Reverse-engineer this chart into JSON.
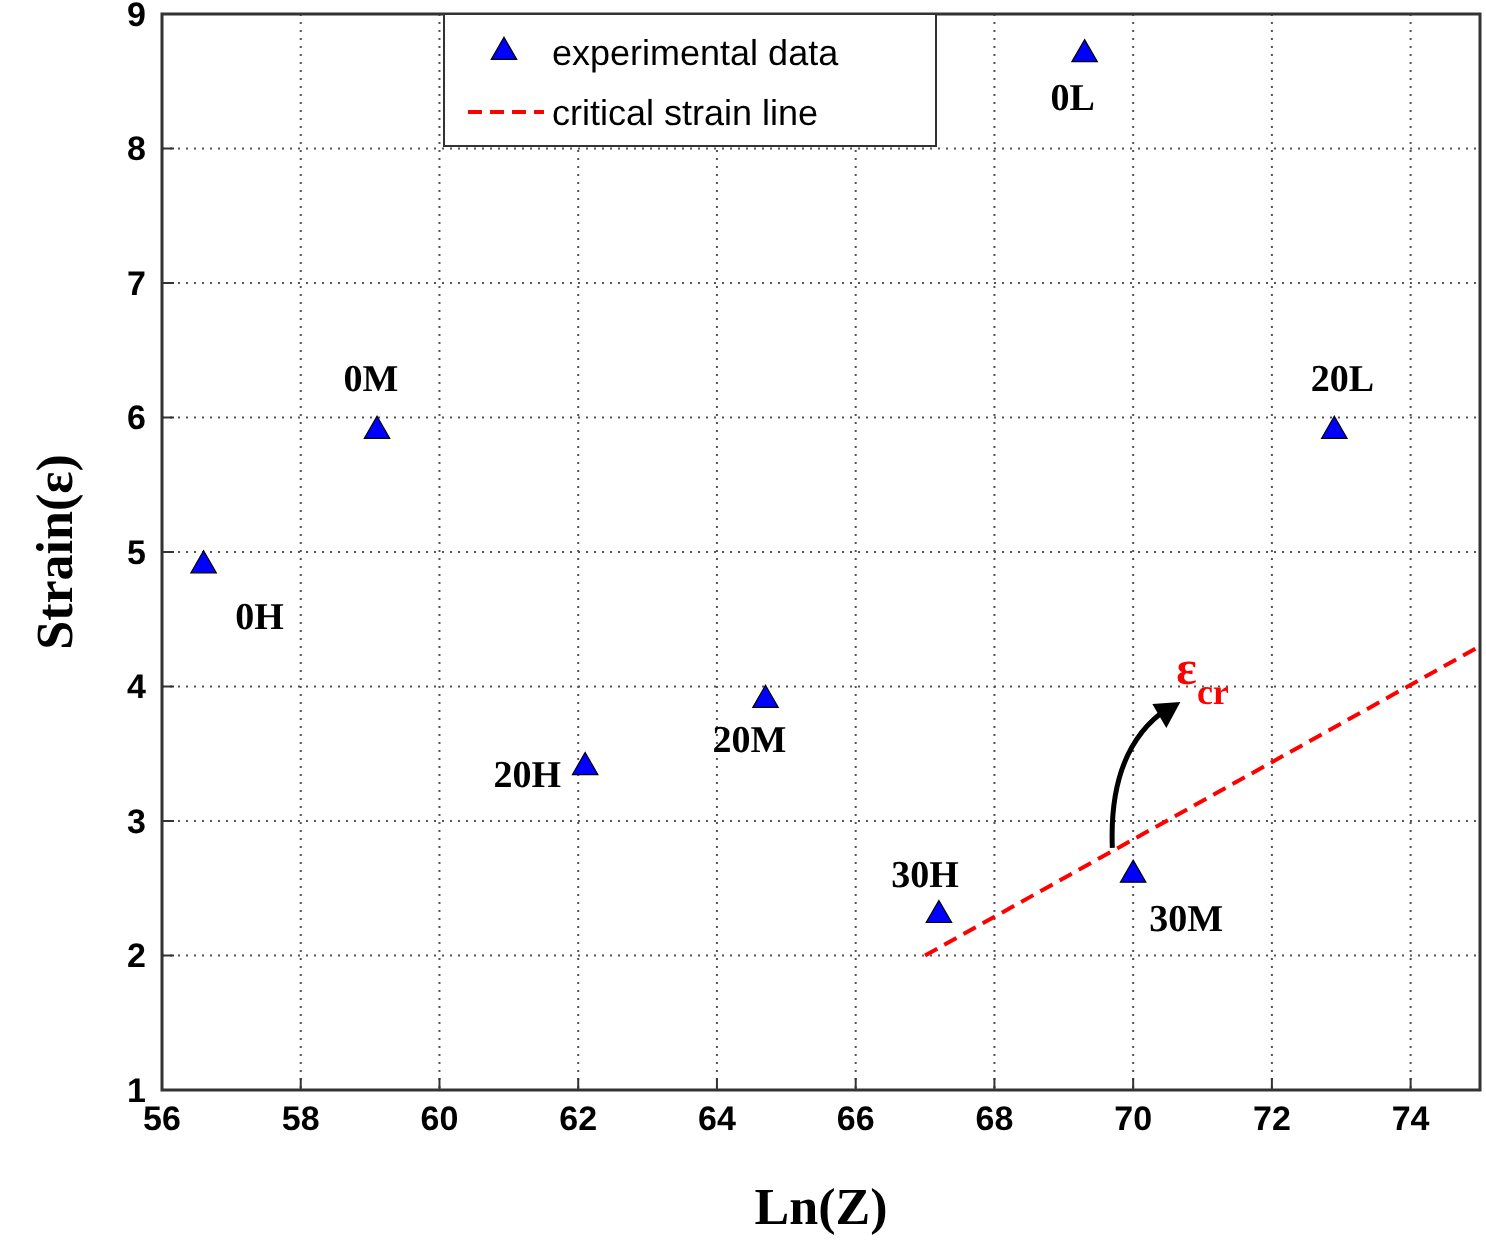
{
  "chart_data": {
    "type": "scatter",
    "xlabel": "Ln(Z)",
    "ylabel": "Strain(ε)",
    "xlim": [
      56,
      75
    ],
    "ylim": [
      1,
      9
    ],
    "xticks": [
      56,
      58,
      60,
      62,
      64,
      66,
      68,
      70,
      72,
      74
    ],
    "yticks": [
      1,
      2,
      3,
      4,
      5,
      6,
      7,
      8,
      9
    ],
    "grid": true,
    "legend": "top",
    "series": [
      {
        "name": "experimental data",
        "color": "#0000ff",
        "marker": "triangle",
        "x": [
          56.6,
          59.1,
          69.3,
          72.9,
          62.1,
          64.7,
          67.2,
          70.0
        ],
        "values": [
          4.9,
          5.9,
          8.7,
          5.9,
          3.4,
          3.9,
          2.3,
          2.6
        ]
      },
      {
        "type": "line",
        "name": "critical strain line",
        "color": "#ff0000",
        "line_style": "dashed",
        "marker": "none",
        "x": [
          67,
          75
        ],
        "values": [
          2,
          4.3
        ]
      }
    ],
    "annotations": [
      {
        "text": "0H",
        "x": 56.6,
        "y": 4.9
      },
      {
        "text": "0M",
        "x": 59.1,
        "y": 5.9
      },
      {
        "text": "0L",
        "x": 69.3,
        "y": 8.7
      },
      {
        "text": "20L",
        "x": 72.9,
        "y": 5.9
      },
      {
        "text": "20H",
        "x": 62.1,
        "y": 3.4
      },
      {
        "text": "20M",
        "x": 64.7,
        "y": 3.9
      },
      {
        "text": "30H",
        "x": 67.2,
        "y": 2.3
      },
      {
        "text": "30M",
        "x": 70.0,
        "y": 2.6
      },
      {
        "text": "ε$_{cr}$",
        "x": 69.7,
        "y": 2.8
      }
    ]
  }
}
